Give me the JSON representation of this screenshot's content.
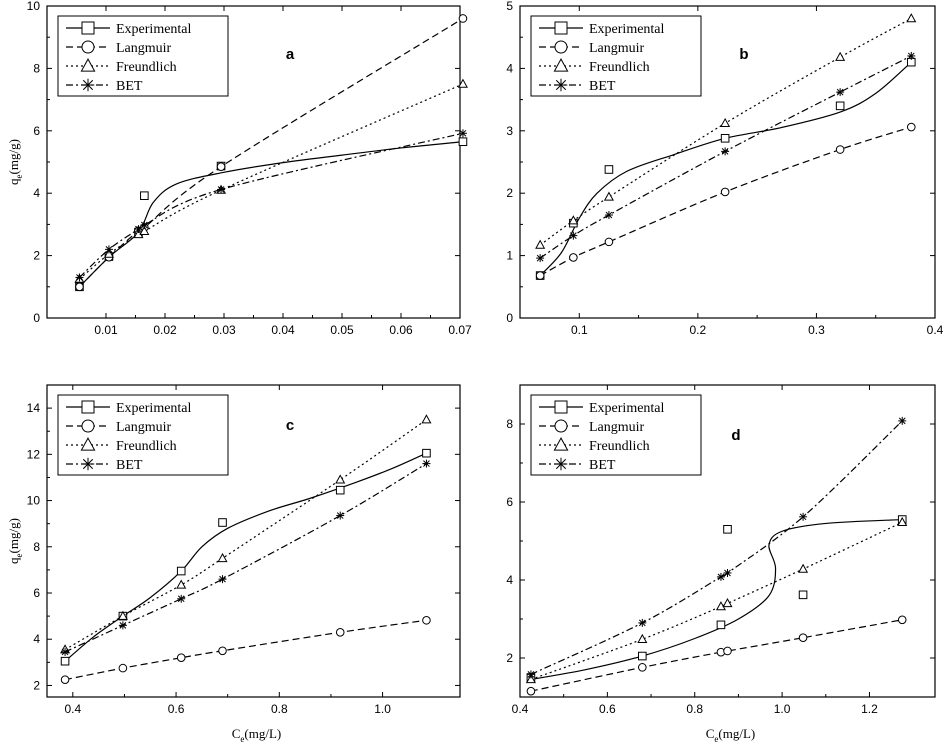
{
  "figure": {
    "ylabel_main": "q",
    "ylabel_sub": "e",
    "ylabel_unit": "(mg/g)",
    "xlabel_main": "C",
    "xlabel_sub": "e",
    "xlabel_unit": "(mg/L)"
  },
  "legend": [
    {
      "name": "Experimental",
      "marker": "square",
      "dash": "solid"
    },
    {
      "name": "Langmuir",
      "marker": "circle",
      "dash": "dashed"
    },
    {
      "name": "Freundlich",
      "marker": "triangle",
      "dash": "dotted"
    },
    {
      "name": "BET",
      "marker": "asterisk",
      "dash": "dashdot"
    }
  ],
  "chart_data": [
    {
      "type": "line",
      "panel": "a",
      "xlim": [
        0.0,
        0.07
      ],
      "ylim": [
        0,
        10
      ],
      "xticks": [
        0.01,
        0.02,
        0.03,
        0.04,
        0.05,
        0.06,
        0.07
      ],
      "xtick_labels": [
        "0.01",
        "0.02",
        "0.03",
        "0.04",
        "0.05",
        "0.06",
        "0.07"
      ],
      "yticks": [
        0,
        2,
        4,
        6,
        8,
        10
      ],
      "ytick_labels": [
        "0",
        "2",
        "4",
        "6",
        "8",
        "10"
      ],
      "show_ylabel": true,
      "show_xlabel": false,
      "series": [
        {
          "name": "Experimental",
          "points": [
            [
              0.0055,
              1.0
            ],
            [
              0.0105,
              1.97
            ],
            [
              0.0155,
              2.75
            ],
            [
              0.0165,
              3.92
            ],
            [
              0.0295,
              4.87
            ],
            [
              0.0705,
              5.65
            ]
          ],
          "curve": [
            [
              0.0055,
              1.0
            ],
            [
              0.0105,
              1.95
            ],
            [
              0.0155,
              2.75
            ],
            [
              0.018,
              3.7
            ],
            [
              0.022,
              4.3
            ],
            [
              0.03,
              4.67
            ],
            [
              0.04,
              4.98
            ],
            [
              0.05,
              5.22
            ],
            [
              0.06,
              5.45
            ],
            [
              0.0705,
              5.65
            ]
          ]
        },
        {
          "name": "Langmuir",
          "points": [
            [
              0.0055,
              1.0
            ],
            [
              0.0105,
              1.95
            ],
            [
              0.0155,
              2.8
            ],
            [
              0.0165,
              2.9
            ],
            [
              0.0295,
              4.85
            ],
            [
              0.0705,
              9.6
            ]
          ],
          "curve": [
            [
              0.0055,
              1.0
            ],
            [
              0.0105,
              1.95
            ],
            [
              0.0155,
              2.8
            ],
            [
              0.0165,
              2.9
            ],
            [
              0.0295,
              4.85
            ],
            [
              0.0705,
              9.6
            ]
          ]
        },
        {
          "name": "Freundlich",
          "points": [
            [
              0.0055,
              1.25
            ],
            [
              0.0105,
              2.05
            ],
            [
              0.0155,
              2.68
            ],
            [
              0.0165,
              2.78
            ],
            [
              0.0295,
              4.1
            ],
            [
              0.0705,
              7.5
            ]
          ],
          "curve": [
            [
              0.0055,
              1.25
            ],
            [
              0.0105,
              2.05
            ],
            [
              0.0155,
              2.68
            ],
            [
              0.0165,
              2.78
            ],
            [
              0.0295,
              4.1
            ],
            [
              0.0705,
              7.5
            ]
          ]
        },
        {
          "name": "BET",
          "points": [
            [
              0.0055,
              1.3
            ],
            [
              0.0105,
              2.2
            ],
            [
              0.0155,
              2.85
            ],
            [
              0.0165,
              2.98
            ],
            [
              0.0295,
              4.12
            ],
            [
              0.0705,
              5.92
            ]
          ],
          "curve": [
            [
              0.0055,
              1.3
            ],
            [
              0.0105,
              2.2
            ],
            [
              0.0155,
              2.85
            ],
            [
              0.0165,
              2.98
            ],
            [
              0.0295,
              4.12
            ],
            [
              0.0705,
              5.92
            ]
          ]
        }
      ]
    },
    {
      "type": "line",
      "panel": "b",
      "xlim": [
        0.05,
        0.4
      ],
      "ylim": [
        0,
        5
      ],
      "xticks": [
        0.1,
        0.2,
        0.3,
        0.4
      ],
      "xtick_labels": [
        "0.1",
        "0.2",
        "0.3",
        "0.4"
      ],
      "yticks": [
        0,
        1,
        2,
        3,
        4,
        5
      ],
      "ytick_labels": [
        "0",
        "1",
        "2",
        "3",
        "4",
        "5"
      ],
      "show_ylabel": false,
      "show_xlabel": false,
      "series": [
        {
          "name": "Experimental",
          "points": [
            [
              0.067,
              0.68
            ],
            [
              0.095,
              1.52
            ],
            [
              0.125,
              2.38
            ],
            [
              0.223,
              2.88
            ],
            [
              0.32,
              3.4
            ],
            [
              0.38,
              4.1
            ]
          ],
          "curve": [
            [
              0.067,
              0.68
            ],
            [
              0.085,
              1.05
            ],
            [
              0.1,
              1.6
            ],
            [
              0.115,
              2.0
            ],
            [
              0.14,
              2.35
            ],
            [
              0.18,
              2.62
            ],
            [
              0.223,
              2.88
            ],
            [
              0.27,
              3.05
            ],
            [
              0.32,
              3.3
            ],
            [
              0.35,
              3.6
            ],
            [
              0.38,
              4.1
            ]
          ]
        },
        {
          "name": "Langmuir",
          "points": [
            [
              0.067,
              0.68
            ],
            [
              0.095,
              0.97
            ],
            [
              0.125,
              1.22
            ],
            [
              0.223,
              2.02
            ],
            [
              0.32,
              2.7
            ],
            [
              0.38,
              3.06
            ]
          ],
          "curve": [
            [
              0.067,
              0.68
            ],
            [
              0.095,
              0.97
            ],
            [
              0.125,
              1.22
            ],
            [
              0.223,
              2.02
            ],
            [
              0.32,
              2.7
            ],
            [
              0.38,
              3.06
            ]
          ]
        },
        {
          "name": "Freundlich",
          "points": [
            [
              0.067,
              1.17
            ],
            [
              0.095,
              1.56
            ],
            [
              0.125,
              1.94
            ],
            [
              0.223,
              3.12
            ],
            [
              0.32,
              4.18
            ],
            [
              0.38,
              4.8
            ]
          ],
          "curve": [
            [
              0.067,
              1.17
            ],
            [
              0.095,
              1.56
            ],
            [
              0.125,
              1.94
            ],
            [
              0.223,
              3.12
            ],
            [
              0.32,
              4.18
            ],
            [
              0.38,
              4.8
            ]
          ]
        },
        {
          "name": "BET",
          "points": [
            [
              0.067,
              0.96
            ],
            [
              0.095,
              1.32
            ],
            [
              0.125,
              1.65
            ],
            [
              0.223,
              2.67
            ],
            [
              0.32,
              3.62
            ],
            [
              0.38,
              4.2
            ]
          ],
          "curve": [
            [
              0.067,
              0.96
            ],
            [
              0.095,
              1.32
            ],
            [
              0.125,
              1.65
            ],
            [
              0.223,
              2.67
            ],
            [
              0.32,
              3.62
            ],
            [
              0.38,
              4.2
            ]
          ]
        }
      ]
    },
    {
      "type": "line",
      "panel": "c",
      "xlim": [
        0.35,
        1.15
      ],
      "ylim": [
        1.5,
        15
      ],
      "xticks": [
        0.4,
        0.6,
        0.8,
        1.0
      ],
      "xtick_labels": [
        "0.4",
        "0.6",
        "0.8",
        "1.0"
      ],
      "yticks": [
        2,
        4,
        6,
        8,
        10,
        12,
        14
      ],
      "ytick_labels": [
        "2",
        "4",
        "6",
        "8",
        "10",
        "12",
        "14"
      ],
      "show_ylabel": true,
      "show_xlabel": true,
      "series": [
        {
          "name": "Experimental",
          "points": [
            [
              0.385,
              3.05
            ],
            [
              0.497,
              5.0
            ],
            [
              0.61,
              6.95
            ],
            [
              0.69,
              9.05
            ],
            [
              0.918,
              10.45
            ],
            [
              1.085,
              12.05
            ]
          ],
          "curve": [
            [
              0.385,
              3.05
            ],
            [
              0.44,
              4.1
            ],
            [
              0.497,
              5.0
            ],
            [
              0.55,
              5.8
            ],
            [
              0.61,
              6.95
            ],
            [
              0.65,
              8.0
            ],
            [
              0.7,
              8.8
            ],
            [
              0.78,
              9.55
            ],
            [
              0.86,
              10.1
            ],
            [
              0.95,
              10.8
            ],
            [
              1.02,
              11.4
            ],
            [
              1.085,
              12.05
            ]
          ]
        },
        {
          "name": "Langmuir",
          "points": [
            [
              0.385,
              2.25
            ],
            [
              0.497,
              2.75
            ],
            [
              0.61,
              3.2
            ],
            [
              0.69,
              3.5
            ],
            [
              0.918,
              4.3
            ],
            [
              1.085,
              4.82
            ]
          ],
          "curve": [
            [
              0.385,
              2.25
            ],
            [
              0.497,
              2.75
            ],
            [
              0.61,
              3.2
            ],
            [
              0.69,
              3.5
            ],
            [
              0.918,
              4.3
            ],
            [
              1.085,
              4.82
            ]
          ]
        },
        {
          "name": "Freundlich",
          "points": [
            [
              0.385,
              3.55
            ],
            [
              0.497,
              5.0
            ],
            [
              0.61,
              6.35
            ],
            [
              0.69,
              7.5
            ],
            [
              0.918,
              10.9
            ],
            [
              1.085,
              13.5
            ]
          ],
          "curve": [
            [
              0.385,
              3.55
            ],
            [
              0.497,
              5.0
            ],
            [
              0.61,
              6.35
            ],
            [
              0.69,
              7.5
            ],
            [
              0.918,
              10.9
            ],
            [
              1.085,
              13.5
            ]
          ]
        },
        {
          "name": "BET",
          "points": [
            [
              0.385,
              3.45
            ],
            [
              0.497,
              4.6
            ],
            [
              0.61,
              5.75
            ],
            [
              0.69,
              6.6
            ],
            [
              0.918,
              9.35
            ],
            [
              1.085,
              11.6
            ]
          ],
          "curve": [
            [
              0.385,
              3.45
            ],
            [
              0.497,
              4.6
            ],
            [
              0.61,
              5.75
            ],
            [
              0.69,
              6.6
            ],
            [
              0.918,
              9.35
            ],
            [
              1.085,
              11.6
            ]
          ]
        }
      ]
    },
    {
      "type": "line",
      "panel": "d",
      "xlim": [
        0.4,
        1.35
      ],
      "ylim": [
        1,
        9
      ],
      "xticks": [
        0.4,
        0.6,
        0.8,
        1.0,
        1.2
      ],
      "xtick_labels": [
        "0.4",
        "0.6",
        "0.8",
        "1.0",
        "1.2"
      ],
      "yticks": [
        2,
        4,
        6,
        8
      ],
      "ytick_labels": [
        "2",
        "4",
        "6",
        "8"
      ],
      "show_ylabel": false,
      "show_xlabel": true,
      "series": [
        {
          "name": "Experimental",
          "points": [
            [
              0.425,
              1.5
            ],
            [
              0.68,
              2.05
            ],
            [
              0.86,
              2.85
            ],
            [
              0.875,
              5.3
            ],
            [
              1.048,
              3.62
            ],
            [
              1.275,
              5.55
            ]
          ],
          "curve": [
            [
              0.425,
              1.45
            ],
            [
              0.55,
              1.7
            ],
            [
              0.68,
              2.05
            ],
            [
              0.8,
              2.5
            ],
            [
              0.9,
              3.0
            ],
            [
              0.97,
              3.6
            ],
            [
              0.985,
              4.3
            ],
            [
              0.97,
              4.9
            ],
            [
              1.0,
              5.25
            ],
            [
              1.1,
              5.45
            ],
            [
              1.275,
              5.55
            ]
          ]
        },
        {
          "name": "Langmuir",
          "points": [
            [
              0.425,
              1.15
            ],
            [
              0.68,
              1.76
            ],
            [
              0.86,
              2.15
            ],
            [
              0.875,
              2.18
            ],
            [
              1.048,
              2.52
            ],
            [
              1.275,
              2.98
            ]
          ],
          "curve": [
            [
              0.425,
              1.15
            ],
            [
              0.68,
              1.76
            ],
            [
              0.86,
              2.15
            ],
            [
              0.875,
              2.18
            ],
            [
              1.048,
              2.52
            ],
            [
              1.275,
              2.98
            ]
          ]
        },
        {
          "name": "Freundlich",
          "points": [
            [
              0.425,
              1.45
            ],
            [
              0.68,
              2.48
            ],
            [
              0.86,
              3.32
            ],
            [
              0.875,
              3.4
            ],
            [
              1.048,
              4.28
            ],
            [
              1.275,
              5.48
            ]
          ],
          "curve": [
            [
              0.425,
              1.45
            ],
            [
              0.68,
              2.48
            ],
            [
              0.86,
              3.32
            ],
            [
              0.875,
              3.4
            ],
            [
              1.048,
              4.28
            ],
            [
              1.275,
              5.48
            ]
          ]
        },
        {
          "name": "BET",
          "points": [
            [
              0.425,
              1.58
            ],
            [
              0.68,
              2.9
            ],
            [
              0.86,
              4.08
            ],
            [
              0.875,
              4.18
            ],
            [
              1.048,
              5.62
            ],
            [
              1.275,
              8.08
            ]
          ],
          "curve": [
            [
              0.425,
              1.58
            ],
            [
              0.68,
              2.9
            ],
            [
              0.86,
              4.08
            ],
            [
              0.875,
              4.18
            ],
            [
              1.048,
              5.62
            ],
            [
              1.275,
              8.08
            ]
          ]
        }
      ]
    }
  ]
}
